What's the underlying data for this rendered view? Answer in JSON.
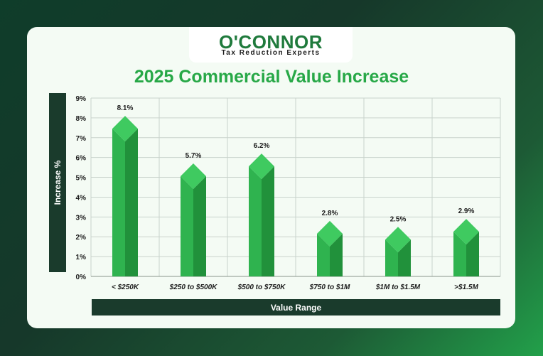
{
  "logo": {
    "name": "O'CONNOR",
    "tagline": "Tax Reduction Experts"
  },
  "chart_data": {
    "type": "bar",
    "title": "2025 Commercial Value Increase",
    "xlabel": "Value Range",
    "ylabel": "Increase %",
    "categories": [
      "< $250K",
      "$250 to $500K",
      "$500 to $750K",
      "$750 to $1M",
      "$1M to $1.5M",
      ">$1.5M"
    ],
    "values": [
      8.1,
      5.7,
      6.2,
      2.8,
      2.5,
      2.9
    ],
    "value_labels": [
      "8.1%",
      "5.7%",
      "6.2%",
      "2.8%",
      "2.5%",
      "2.9%"
    ],
    "ylim": [
      0,
      9
    ],
    "yticks": [
      "0%",
      "1%",
      "2%",
      "3%",
      "4%",
      "5%",
      "6%",
      "7%",
      "8%",
      "9%"
    ],
    "grid": true,
    "colors": {
      "bar_front": "#2fb34f",
      "bar_side": "#21913b",
      "bar_top": "#3fca60",
      "grid": "#c9d3cc",
      "axis_box": "#1a3b2c",
      "title": "#27a847"
    }
  }
}
